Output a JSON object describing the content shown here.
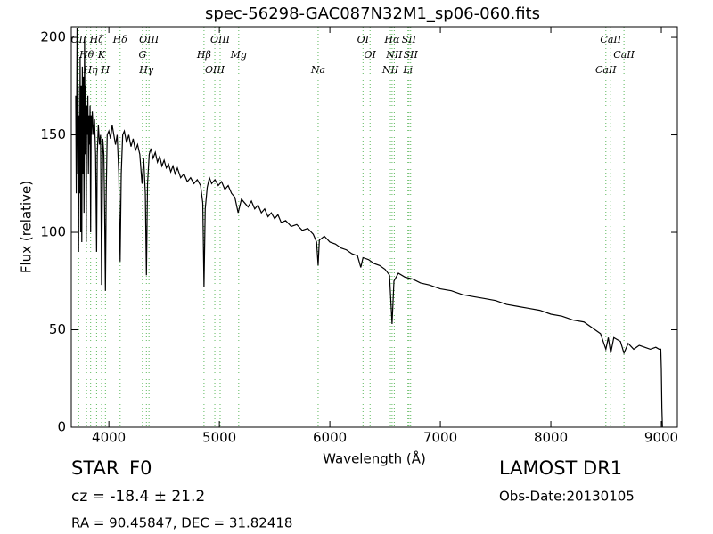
{
  "chart_data": {
    "type": "line",
    "title": "spec-56298-GAC087N32M1_sp06-060.fits",
    "xlabel": "Wavelength (Å)",
    "ylabel": "Flux (relative)",
    "xlim": [
      3660,
      9145
    ],
    "ylim": [
      0,
      205.5
    ],
    "xticks": [
      4000,
      5000,
      6000,
      7000,
      8000,
      9000
    ],
    "yticks": [
      0,
      50,
      100,
      150,
      200
    ],
    "color": "#000000",
    "line_color": "#5cb85c",
    "x": [
      3700,
      3705,
      3712,
      3718,
      3722,
      3726,
      3730,
      3735,
      3740,
      3745,
      3750,
      3755,
      3760,
      3765,
      3770,
      3775,
      3780,
      3785,
      3790,
      3795,
      3800,
      3805,
      3810,
      3815,
      3820,
      3825,
      3830,
      3835,
      3840,
      3845,
      3850,
      3860,
      3870,
      3880,
      3889,
      3895,
      3905,
      3915,
      3925,
      3934,
      3945,
      3955,
      3962,
      3969,
      3976,
      3985,
      4000,
      4015,
      4030,
      4045,
      4060,
      4075,
      4090,
      4102,
      4112,
      4125,
      4140,
      4160,
      4180,
      4200,
      4220,
      4240,
      4260,
      4280,
      4300,
      4315,
      4330,
      4340,
      4350,
      4365,
      4380,
      4400,
      4420,
      4440,
      4460,
      4480,
      4500,
      4520,
      4540,
      4560,
      4580,
      4600,
      4620,
      4650,
      4680,
      4710,
      4740,
      4770,
      4800,
      4830,
      4850,
      4861,
      4872,
      4890,
      4910,
      4930,
      4960,
      4990,
      5020,
      5050,
      5080,
      5110,
      5140,
      5170,
      5200,
      5230,
      5260,
      5290,
      5320,
      5350,
      5380,
      5410,
      5440,
      5470,
      5500,
      5530,
      5560,
      5600,
      5650,
      5700,
      5750,
      5800,
      5850,
      5880,
      5894,
      5905,
      5950,
      6000,
      6050,
      6100,
      6150,
      6200,
      6250,
      6280,
      6300,
      6350,
      6400,
      6450,
      6500,
      6540,
      6563,
      6580,
      6620,
      6680,
      6750,
      6820,
      6900,
      7000,
      7100,
      7200,
      7300,
      7400,
      7500,
      7600,
      7700,
      7800,
      7900,
      8000,
      8100,
      8200,
      8300,
      8400,
      8450,
      8498,
      8520,
      8542,
      8570,
      8600,
      8630,
      8662,
      8700,
      8750,
      8800,
      8850,
      8900,
      8950,
      8980,
      8995,
      9000,
      9005,
      9010
    ],
    "values": [
      170,
      120,
      205,
      130,
      175,
      90,
      160,
      120,
      190,
      100,
      175,
      95,
      185,
      130,
      180,
      110,
      200,
      140,
      175,
      95,
      165,
      150,
      170,
      130,
      160,
      145,
      165,
      100,
      160,
      150,
      162,
      150,
      158,
      140,
      90,
      140,
      155,
      145,
      150,
      73,
      148,
      140,
      110,
      70,
      120,
      150,
      152,
      148,
      155,
      150,
      145,
      150,
      130,
      85,
      130,
      150,
      152,
      146,
      150,
      144,
      148,
      142,
      145,
      140,
      125,
      138,
      120,
      78,
      125,
      140,
      143,
      138,
      141,
      136,
      139,
      134,
      137,
      133,
      135,
      131,
      134,
      130,
      133,
      128,
      130,
      126,
      128,
      125,
      127,
      124,
      115,
      72,
      112,
      123,
      128,
      125,
      127,
      124,
      126,
      122,
      124,
      120,
      118,
      110,
      117,
      115,
      113,
      116,
      112,
      114,
      110,
      112,
      108,
      110,
      107,
      109,
      105,
      106,
      103,
      104,
      101,
      102,
      99,
      95,
      83,
      96,
      98,
      95,
      94,
      92,
      91,
      89,
      88,
      82,
      87,
      86,
      84,
      83,
      81,
      78,
      53,
      75,
      79,
      77,
      76,
      74,
      73,
      71,
      70,
      68,
      67,
      66,
      65,
      63,
      62,
      61,
      60,
      58,
      57,
      55,
      54,
      50,
      48,
      40,
      46,
      38,
      46,
      45,
      44,
      38,
      43,
      40,
      42,
      41,
      40,
      41,
      40,
      40,
      30,
      10,
      0
    ],
    "lines": [
      {
        "label": "OII",
        "x": 3727
      },
      {
        "label": "Hθ",
        "x": 3798
      },
      {
        "label": "Hη",
        "x": 3835
      },
      {
        "label": "Hζ",
        "x": 3889
      },
      {
        "label": "K",
        "x": 3934
      },
      {
        "label": "H",
        "x": 3969
      },
      {
        "label": "Hδ",
        "x": 4102
      },
      {
        "label": "G",
        "x": 4304
      },
      {
        "label": "Hγ",
        "x": 4340
      },
      {
        "label": "OIII",
        "x": 4363
      },
      {
        "label": "Hβ",
        "x": 4861
      },
      {
        "label": "OIII",
        "x": 4959
      },
      {
        "label": "OIII",
        "x": 5007
      },
      {
        "label": "Mg",
        "x": 5175
      },
      {
        "label": "Na",
        "x": 5894
      },
      {
        "label": "OI",
        "x": 6300
      },
      {
        "label": "OI",
        "x": 6364
      },
      {
        "label": "NII",
        "x": 6548
      },
      {
        "label": "Hα",
        "x": 6563
      },
      {
        "label": "NII",
        "x": 6583
      },
      {
        "label": "Li",
        "x": 6707
      },
      {
        "label": "SII",
        "x": 6716
      },
      {
        "label": "SII",
        "x": 6731
      },
      {
        "label": "CaII",
        "x": 8498
      },
      {
        "label": "CaII",
        "x": 8542
      },
      {
        "label": "CaII",
        "x": 8662
      }
    ]
  },
  "info": {
    "class": "STAR",
    "subclass": "F0",
    "cz": "cz = -18.4 ± 21.2",
    "coordinates": "RA = 90.45847, DEC = 31.82418",
    "survey": "LAMOST DR1",
    "obs_date": "Obs-Date:20130105"
  }
}
